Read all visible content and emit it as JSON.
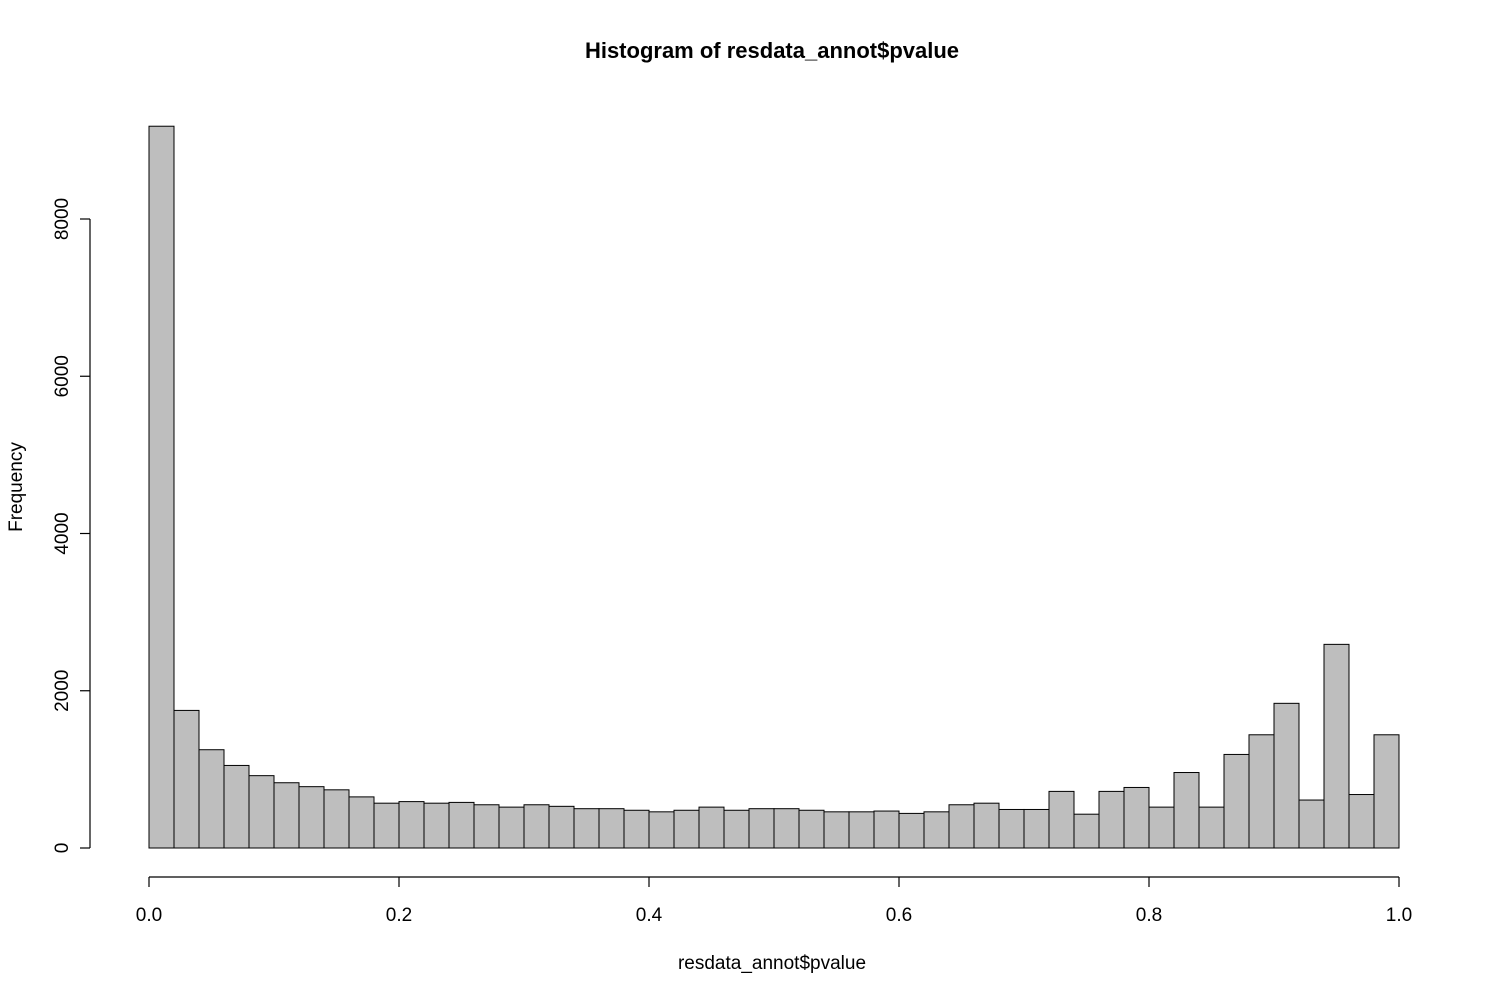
{
  "chart_data": {
    "type": "bar",
    "title": "Histogram of resdata_annot$pvalue",
    "xlabel": "resdata_annot$pvalue",
    "ylabel": "Frequency",
    "xlim": [
      0,
      1
    ],
    "ylim": [
      0,
      9200
    ],
    "bin_width": 0.02,
    "x_ticks": [
      0.0,
      0.2,
      0.4,
      0.6,
      0.8,
      1.0
    ],
    "x_tick_labels": [
      "0.0",
      "0.2",
      "0.4",
      "0.6",
      "0.8",
      "1.0"
    ],
    "y_ticks": [
      0,
      2000,
      4000,
      6000,
      8000
    ],
    "y_tick_labels": [
      "0",
      "2000",
      "4000",
      "6000",
      "8000"
    ],
    "values": [
      9180,
      1750,
      1250,
      1050,
      920,
      830,
      780,
      740,
      650,
      570,
      590,
      570,
      580,
      550,
      520,
      550,
      530,
      500,
      500,
      480,
      460,
      480,
      520,
      480,
      500,
      500,
      480,
      460,
      460,
      470,
      440,
      460,
      550,
      570,
      490,
      490,
      720,
      430,
      720,
      770,
      520,
      960,
      520,
      1190,
      1440,
      1840,
      610,
      2590,
      680,
      1440
    ],
    "bar_color": "#bebebe",
    "grid": false,
    "legend": "none"
  }
}
